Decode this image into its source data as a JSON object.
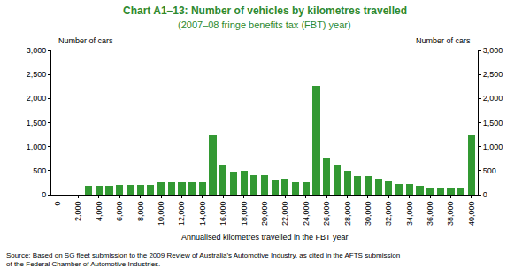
{
  "chart_data": {
    "type": "bar",
    "title": "Chart A1–13: Number of vehicles by kilometres travelled",
    "subtitle": "(2007–08 fringe benefits tax (FBT) year)",
    "ylabel": "Number of cars",
    "y2label": "Number of cars",
    "xlabel": "Annualised kilometres travelled in the FBT year",
    "source": [
      "Source: Based on SG fleet submission to the 2009 Review of Australia's Automotive Industry, as cited in the AFTS submission",
      "of the Federal Chamber of Automotive Industries."
    ],
    "x": [
      0,
      1000,
      2000,
      3000,
      4000,
      5000,
      6000,
      7000,
      8000,
      9000,
      10000,
      11000,
      12000,
      13000,
      14000,
      15000,
      16000,
      17000,
      18000,
      19000,
      20000,
      21000,
      22000,
      23000,
      24000,
      25000,
      26000,
      27000,
      28000,
      29000,
      30000,
      31000,
      32000,
      33000,
      34000,
      35000,
      36000,
      37000,
      38000,
      39000,
      40000
    ],
    "values": [
      0,
      0,
      0,
      180,
      180,
      180,
      200,
      200,
      200,
      210,
      250,
      250,
      250,
      250,
      250,
      1230,
      630,
      470,
      500,
      410,
      400,
      320,
      330,
      250,
      250,
      2260,
      750,
      610,
      490,
      390,
      380,
      330,
      280,
      230,
      230,
      190,
      140,
      140,
      140,
      150,
      1250
    ],
    "color": "#339933",
    "xlim": [
      -600,
      40600
    ],
    "xticks": [
      0,
      {
        "value": 2000,
        "label": "2,000"
      },
      {
        "value": 4000,
        "label": "4,000"
      },
      {
        "value": 6000,
        "label": "6,000"
      },
      {
        "value": 8000,
        "label": "8,000"
      },
      {
        "value": 10000,
        "label": "10,000"
      },
      {
        "value": 12000,
        "label": "12,000"
      },
      {
        "value": 14000,
        "label": "14,000"
      },
      {
        "value": 16000,
        "label": "16,000"
      },
      {
        "value": 18000,
        "label": "18,000"
      },
      {
        "value": 20000,
        "label": "20,000"
      },
      {
        "value": 22000,
        "label": "22,000"
      },
      {
        "value": 24000,
        "label": "24,000"
      },
      {
        "value": 26000,
        "label": "26,000"
      },
      {
        "value": 28000,
        "label": "28,000"
      },
      {
        "value": 30000,
        "label": "30,000"
      },
      {
        "value": 32000,
        "label": "32,000"
      },
      {
        "value": 34000,
        "label": "34,000"
      },
      {
        "value": 36000,
        "label": "36,000"
      },
      {
        "value": 38000,
        "label": "38,000"
      },
      {
        "value": 40000,
        "label": "40,000"
      }
    ],
    "ylim": [
      0,
      3000
    ],
    "yticks": [
      0,
      500,
      {
        "value": 1000,
        "label": "1,000"
      },
      {
        "value": 1500,
        "label": "1,500"
      },
      {
        "value": 2000,
        "label": "2,000"
      },
      {
        "value": 2500,
        "label": "2,500"
      },
      {
        "value": 3000,
        "label": "3,000"
      }
    ],
    "y2lim": [
      0,
      3000
    ],
    "y2ticks": [
      0,
      500,
      {
        "value": 1000,
        "label": "1,000"
      },
      {
        "value": 1500,
        "label": "1,500"
      },
      {
        "value": 2000,
        "label": "2,000"
      },
      {
        "value": 2500,
        "label": "2,500"
      },
      {
        "value": 3000,
        "label": "3,000"
      }
    ],
    "grid": false
  }
}
